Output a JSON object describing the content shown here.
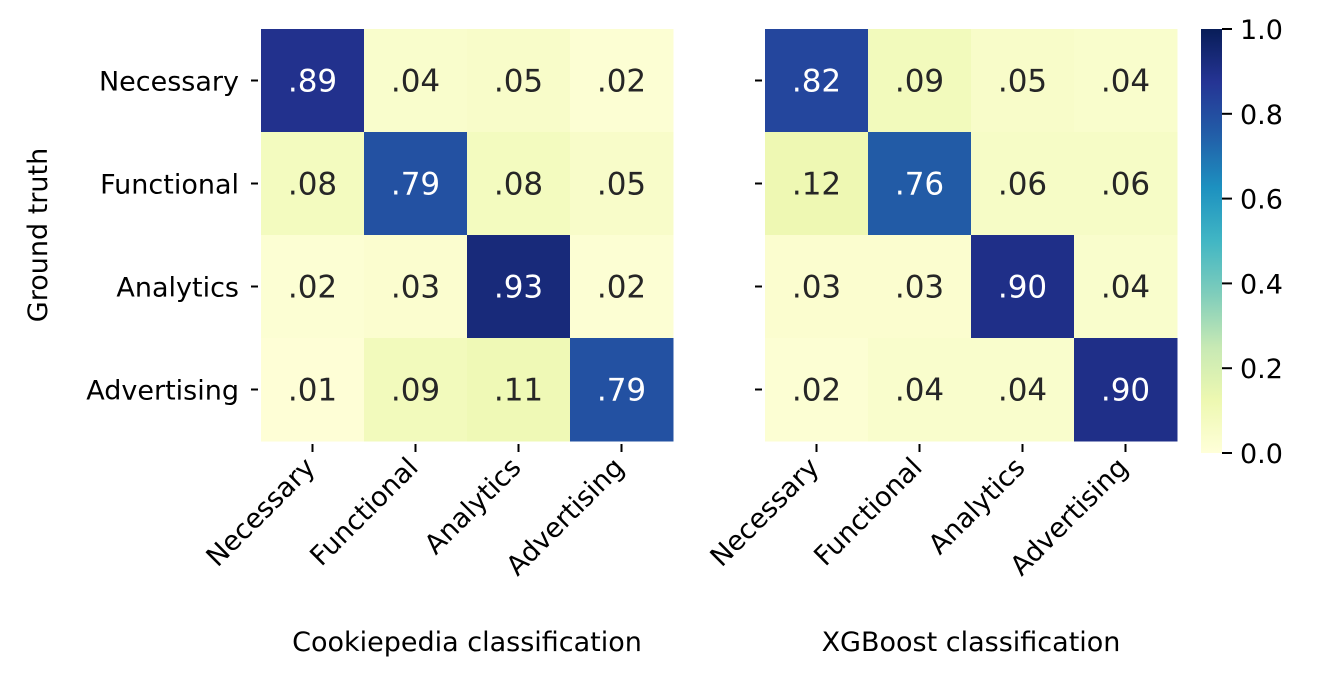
{
  "chart_data": [
    {
      "type": "heatmap",
      "xlabel": "Cookiepedia classification",
      "ylabel": "Ground truth",
      "x_categories": [
        "Necessary",
        "Functional",
        "Analytics",
        "Advertising"
      ],
      "y_categories": [
        "Necessary",
        "Functional",
        "Analytics",
        "Advertising"
      ],
      "values": [
        [
          0.89,
          0.04,
          0.05,
          0.02
        ],
        [
          0.08,
          0.79,
          0.08,
          0.05
        ],
        [
          0.02,
          0.03,
          0.93,
          0.02
        ],
        [
          0.01,
          0.09,
          0.11,
          0.79
        ]
      ],
      "cell_labels": [
        [
          ".89",
          ".04",
          ".05",
          ".02"
        ],
        [
          ".08",
          ".79",
          ".08",
          ".05"
        ],
        [
          ".02",
          ".03",
          ".93",
          ".02"
        ],
        [
          ".01",
          ".09",
          ".11",
          ".79"
        ]
      ]
    },
    {
      "type": "heatmap",
      "xlabel": "XGBoost classification",
      "ylabel": "",
      "x_categories": [
        "Necessary",
        "Functional",
        "Analytics",
        "Advertising"
      ],
      "y_categories": [
        "Necessary",
        "Functional",
        "Analytics",
        "Advertising"
      ],
      "values": [
        [
          0.82,
          0.09,
          0.05,
          0.04
        ],
        [
          0.12,
          0.76,
          0.06,
          0.06
        ],
        [
          0.03,
          0.03,
          0.9,
          0.04
        ],
        [
          0.02,
          0.04,
          0.04,
          0.9
        ]
      ],
      "cell_labels": [
        [
          ".82",
          ".09",
          ".05",
          ".04"
        ],
        [
          ".12",
          ".76",
          ".06",
          ".06"
        ],
        [
          ".03",
          ".03",
          ".90",
          ".04"
        ],
        [
          ".02",
          ".04",
          ".04",
          ".90"
        ]
      ]
    }
  ],
  "colorbar": {
    "colormap": "YlGnBu",
    "range": [
      0.0,
      1.0
    ],
    "ticks": [
      0.0,
      0.2,
      0.4,
      0.6,
      0.8,
      1.0
    ],
    "tick_labels": [
      "0.0",
      "0.2",
      "0.4",
      "0.6",
      "0.8",
      "1.0"
    ]
  },
  "colors": {
    "text_dark": "#262626",
    "text_light": "#ffffff",
    "tick_color": "#000000"
  }
}
